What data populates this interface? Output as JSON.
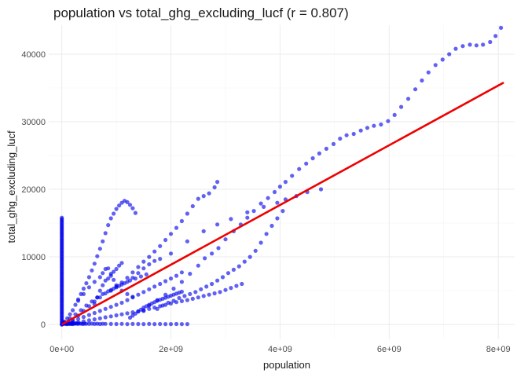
{
  "chart_data": {
    "type": "scatter",
    "title": "population vs total_ghg_excluding_lucf (r = 0.807)",
    "xlabel": "population",
    "ylabel": "total_ghg_excluding_lucf",
    "xlim": [
      -240000000.0,
      8300000000.0
    ],
    "ylim": [
      -2200,
      44300
    ],
    "x_ticks": [
      0,
      2000000000,
      4000000000,
      6000000000,
      8000000000
    ],
    "x_tick_labels": [
      "0e+00",
      "2e+09",
      "4e+09",
      "6e+09",
      "8e+09"
    ],
    "y_ticks": [
      0,
      10000,
      20000,
      30000,
      40000
    ],
    "y_tick_labels": [
      "0",
      "10000",
      "20000",
      "30000",
      "40000"
    ],
    "grid": true,
    "point_color": "#0000ee",
    "trend_color": "#ee0000",
    "trend_line": {
      "x": [
        0,
        8100000000
      ],
      "y": [
        0,
        35800
      ]
    },
    "series": [
      {
        "x": [
          1500000000.0,
          1600000000.0,
          1750000000.0,
          1900000000.0,
          2050000000.0,
          2200000000.0,
          2350000000.0,
          2500000000.0,
          2620000000.0,
          2750000000.0,
          2870000000.0,
          3000000000.0,
          3150000000.0,
          3280000000.0,
          3400000000.0,
          3520000000.0,
          3650000000.0,
          3780000000.0,
          3900000000.0,
          4000000000.0,
          4100000000.0,
          4220000000.0,
          4350000000.0,
          4480000000.0,
          4600000000.0,
          4720000000.0,
          4850000000.0,
          4980000000.0,
          5100000000.0,
          5220000000.0,
          5350000000.0,
          5480000000.0,
          5600000000.0,
          5720000000.0,
          5850000000.0,
          5980000000.0,
          6100000000.0,
          6220000000.0,
          6350000000.0,
          6480000000.0,
          6600000000.0,
          6720000000.0,
          6850000000.0,
          6980000000.0,
          7100000000.0,
          7220000000.0,
          7350000000.0,
          7480000000.0,
          7600000000.0,
          7720000000.0,
          7850000000.0,
          7950000000.0,
          8050000000.0
        ],
        "y": [
          2000,
          2800,
          3600,
          4400,
          5300,
          6300,
          7500,
          8700,
          9800,
          10500,
          11300,
          12600,
          13800,
          14800,
          15800,
          16800,
          17900,
          18700,
          19600,
          20400,
          21100,
          22000,
          23000,
          23800,
          24600,
          25300,
          26000,
          26700,
          27500,
          28000,
          28200,
          28700,
          29100,
          29400,
          29600,
          30100,
          31000,
          32200,
          33400,
          34800,
          36100,
          37300,
          38400,
          39200,
          40000,
          40800,
          41200,
          41400,
          41300,
          41400,
          41800,
          42700,
          43900
        ]
      },
      {
        "x": [
          2000000000.0,
          2300000000.0,
          2600000000.0,
          2850000000.0,
          3100000000.0,
          3400000000.0,
          3700000000.0,
          3950000000.0,
          4100000000.0,
          4300000000.0,
          4500000000.0,
          4750000000.0
        ],
        "y": [
          10500,
          12300,
          13800,
          14800,
          15600,
          16600,
          17400,
          18000,
          18500,
          19000,
          19600,
          20000
        ]
      },
      {
        "x": [
          1750000000.0,
          1850000000.0,
          1950000000.0,
          2050000000.0,
          2150000000.0,
          2250000000.0,
          2350000000.0,
          2450000000.0,
          2550000000.0,
          2650000000.0,
          2750000000.0,
          2850000000.0,
          2950000000.0,
          3050000000.0,
          3150000000.0,
          3250000000.0,
          3350000000.0,
          3450000000.0,
          3550000000.0,
          3650000000.0,
          3750000000.0,
          3850000000.0,
          3950000000.0,
          4050000000.0
        ],
        "y": [
          2300,
          2800,
          3200,
          3500,
          3900,
          4200,
          4500,
          4800,
          5200,
          5600,
          6000,
          6500,
          7000,
          7600,
          8100,
          8600,
          9300,
          10000,
          10900,
          12100,
          13400,
          14600,
          15700,
          16800
        ]
      },
      {
        "x": [
          0,
          50000000,
          100000000,
          150000000,
          200000000,
          250000000,
          300000000,
          350000000,
          400000000,
          450000000,
          500000000,
          550000000,
          600000000,
          650000000,
          700000000,
          750000000,
          800000000,
          850000000,
          900000000,
          950000000,
          1000000000,
          1050000000,
          1100000000,
          1150000000,
          1200000000,
          1250000000,
          1300000000,
          1350000000
        ],
        "y": [
          0,
          400,
          900,
          1500,
          2100,
          2900,
          3700,
          4500,
          5300,
          6100,
          7000,
          8000,
          9000,
          10100,
          11200,
          12300,
          13500,
          14700,
          15700,
          16400,
          17100,
          17600,
          18000,
          18300,
          18100,
          17700,
          17200,
          16500
        ]
      },
      {
        "x": [
          900000000,
          1000000000,
          1100000000,
          1200000000,
          1300000000,
          1400000000,
          1500000000,
          1600000000,
          1700000000,
          1800000000,
          1900000000,
          2000000000,
          2100000000,
          2200000000,
          2300000000,
          2400000000,
          2500000000,
          2600000000,
          2700000000,
          2800000000,
          2850000000
        ],
        "y": [
          5000,
          5600,
          6200,
          6900,
          7700,
          8500,
          9300,
          10000,
          10800,
          11600,
          12500,
          13400,
          14300,
          15300,
          16400,
          17500,
          18600,
          19000,
          19400,
          20300,
          21100
        ]
      },
      {
        "x": [
          200000000,
          300000000,
          400000000,
          500000000,
          600000000,
          700000000,
          800000000,
          900000000,
          1000000000,
          1100000000,
          1200000000,
          1300000000,
          1400000000,
          1500000000,
          1600000000,
          1700000000,
          1800000000
        ],
        "y": [
          700,
          1300,
          2000,
          2700,
          3400,
          4000,
          4600,
          5100,
          5500,
          5900,
          6300,
          6900,
          7600,
          8300,
          8900,
          9400,
          9700
        ]
      },
      {
        "x": [
          100000000,
          200000000,
          300000000,
          400000000,
          500000000,
          600000000,
          700000000,
          800000000,
          900000000,
          1000000000,
          1100000000,
          1200000000,
          1300000000,
          1400000000,
          1500000000,
          1600000000,
          1700000000,
          1800000000,
          1900000000,
          2000000000,
          2100000000,
          2200000000,
          2300000000,
          2400000000,
          2500000000,
          2600000000,
          2700000000,
          2800000000,
          2900000000,
          3000000000,
          3100000000,
          3200000000,
          3300000000
        ],
        "y": [
          100,
          200,
          300,
          450,
          600,
          750,
          900,
          1050,
          1200,
          1350,
          1500,
          1650,
          1800,
          1950,
          2100,
          2300,
          2500,
          2700,
          2900,
          3100,
          3300,
          3450,
          3600,
          3800,
          4000,
          4200,
          4400,
          4600,
          4800,
          5100,
          5400,
          5700,
          6000
        ]
      },
      {
        "x": [
          100000000,
          200000000,
          300000000,
          400000000,
          500000000,
          600000000,
          700000000,
          800000000,
          900000000,
          1000000000,
          1100000000,
          1200000000,
          1300000000,
          1400000000,
          1500000000,
          1600000000,
          1700000000,
          1800000000,
          1900000000,
          2000000000,
          2100000000,
          2200000000
        ],
        "y": [
          200,
          500,
          800,
          1100,
          1400,
          1700,
          2000,
          2300,
          2600,
          2900,
          3200,
          3600,
          4000,
          4400,
          4800,
          5200,
          5600,
          6000,
          6400,
          6800,
          7200,
          7700
        ]
      },
      {
        "x": [
          50000000,
          150000000,
          250000000,
          350000000,
          450000000,
          550000000,
          650000000,
          750000000,
          850000000,
          950000000,
          1050000000,
          1150000000,
          1250000000,
          1350000000,
          1450000000,
          1550000000
        ],
        "y": [
          300,
          900,
          1500,
          2100,
          2800,
          3400,
          4000,
          4500,
          4900,
          5300,
          5700,
          6100,
          6500,
          6800,
          7100,
          7400
        ]
      },
      {
        "x": [
          300000000,
          400000000,
          500000000,
          600000000,
          700000000,
          750000000,
          800000000,
          850000000,
          900000000,
          950000000,
          1000000000,
          1100000000,
          1200000000,
          1300000000
        ],
        "y": [
          3500,
          4500,
          5500,
          6300,
          7000,
          7600,
          8200,
          8300,
          7500,
          6600,
          5800,
          5000,
          4500,
          4100
        ]
      },
      {
        "x": [
          600000000,
          650000000,
          700000000,
          750000000,
          800000000,
          850000000,
          900000000,
          950000000,
          1000000000,
          1050000000,
          1100000000
        ],
        "y": [
          3000,
          4000,
          5000,
          5800,
          6500,
          6800,
          7200,
          7800,
          8200,
          8700,
          9100
        ]
      },
      {
        "x": [
          1250000000.0,
          1300000000.0,
          1350000000.0,
          1400000000.0,
          1450000000.0,
          1500000000.0,
          1550000000.0,
          1600000000.0,
          1650000000.0,
          1700000000.0,
          1750000000.0,
          1800000000.0,
          1850000000.0,
          1900000000.0,
          1950000000.0,
          2000000000.0,
          2050000000.0,
          2100000000.0,
          2150000000.0,
          2200000000.0
        ],
        "y": [
          1000,
          1300,
          1600,
          1900,
          2200,
          2500,
          2700,
          2900,
          3100,
          3300,
          3500,
          3650,
          3800,
          3950,
          4100,
          4250,
          4400,
          4550,
          4700,
          4850
        ]
      },
      {
        "x": [
          0,
          0,
          0,
          0,
          0,
          0,
          0,
          0,
          0,
          0,
          0,
          0,
          0,
          0,
          0,
          0,
          0,
          0,
          0,
          0,
          0,
          0,
          0,
          0,
          0,
          0,
          0,
          0,
          0,
          0,
          0,
          0,
          0,
          0,
          0,
          0,
          0,
          0,
          0,
          0,
          0,
          0,
          0,
          0,
          0,
          0,
          0,
          0,
          0,
          0,
          0,
          0,
          0,
          0,
          0,
          0,
          0,
          0,
          0,
          0,
          0,
          0,
          0,
          0,
          0,
          0,
          0,
          0,
          0,
          0,
          0,
          0,
          0,
          0,
          0,
          0,
          0,
          0,
          0,
          0
        ],
        "y": [
          0,
          200,
          400,
          600,
          800,
          1000,
          1200,
          1400,
          1600,
          1800,
          2000,
          2200,
          2400,
          2600,
          2800,
          3000,
          3200,
          3400,
          3600,
          3800,
          4000,
          4200,
          4400,
          4600,
          4800,
          5000,
          5200,
          5400,
          5600,
          5800,
          6000,
          6200,
          6400,
          6600,
          6800,
          7000,
          7200,
          7400,
          7600,
          7800,
          8000,
          8200,
          8400,
          8600,
          8800,
          9000,
          9200,
          9400,
          9600,
          9800,
          10000,
          10200,
          10400,
          10600,
          10800,
          11000,
          11200,
          11400,
          11600,
          11800,
          12000,
          12200,
          12400,
          12600,
          12800,
          13000,
          13200,
          13400,
          13600,
          13800,
          14000,
          14200,
          14400,
          14600,
          14800,
          15000,
          15200,
          15400,
          15600,
          15800
        ]
      },
      {
        "x": [
          10000000,
          20000000,
          30000000,
          40000000,
          50000000,
          60000000,
          70000000,
          80000000,
          90000000,
          100000000,
          110000000,
          120000000,
          130000000,
          140000000,
          150000000,
          160000000,
          170000000,
          180000000,
          190000000,
          200000000,
          220000000,
          240000000,
          260000000,
          280000000,
          300000000,
          330000000,
          360000000,
          390000000,
          420000000,
          450000000,
          500000000,
          550000000,
          600000000,
          650000000,
          700000000,
          750000000,
          800000000,
          900000000,
          1000000000,
          1100000000,
          1200000000,
          1300000000,
          1400000000,
          1500000000,
          1600000000,
          1700000000,
          1800000000,
          1900000000,
          2000000000,
          2100000000,
          2200000000,
          2300000000
        ],
        "y": [
          100,
          150,
          80,
          200,
          120,
          250,
          90,
          180,
          60,
          220,
          140,
          100,
          170,
          80,
          200,
          130,
          90,
          160,
          110,
          70,
          140,
          100,
          180,
          120,
          90,
          150,
          110,
          80,
          130,
          100,
          90,
          120,
          80,
          110,
          70,
          100,
          90,
          80,
          70,
          90,
          60,
          80,
          70,
          60,
          80,
          50,
          70,
          60,
          50,
          70,
          60,
          50
        ]
      }
    ]
  }
}
